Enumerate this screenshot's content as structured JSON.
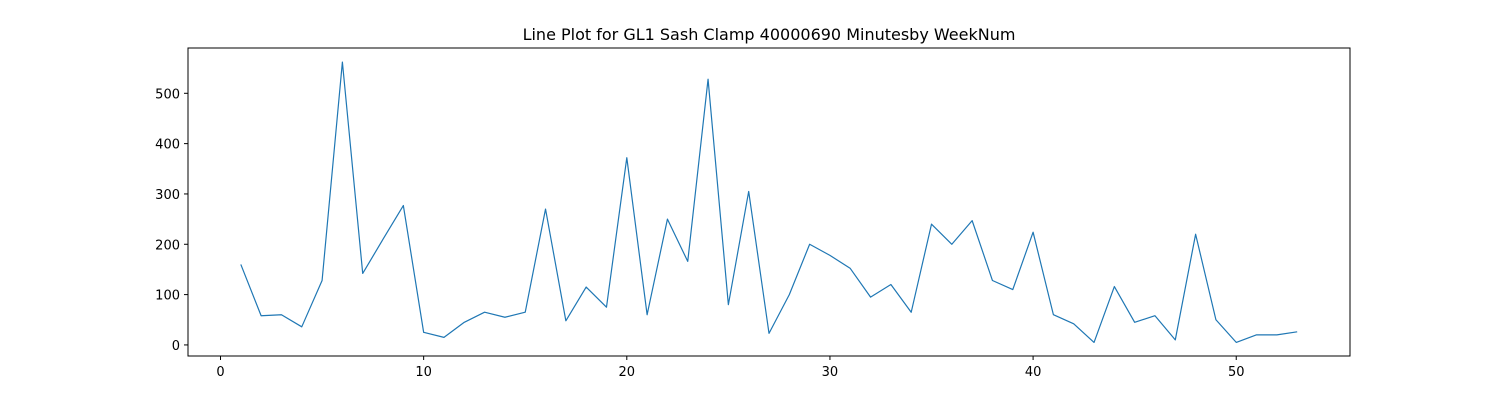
{
  "chart_data": {
    "type": "line",
    "title": "Line Plot for GL1 Sash Clamp 40000690 Minutesby WeekNum",
    "xlabel": "",
    "ylabel": "",
    "xlim": [
      -1.6,
      55.6
    ],
    "ylim": [
      -22,
      590
    ],
    "xticks": [
      0,
      10,
      20,
      30,
      40,
      50
    ],
    "yticks": [
      0,
      100,
      200,
      300,
      400,
      500
    ],
    "grid": false,
    "line_color": "#1f77b4",
    "series": [
      {
        "x": [
          1,
          2,
          3,
          4,
          5,
          6,
          7,
          8,
          9,
          10,
          11,
          12,
          13,
          14,
          15,
          16,
          17,
          18,
          19,
          20,
          21,
          22,
          23,
          24,
          25,
          26,
          27,
          28,
          29,
          30,
          31,
          32,
          33,
          34,
          35,
          36,
          37,
          38,
          39,
          40,
          41,
          42,
          43,
          44,
          45,
          46,
          47,
          48,
          49,
          50,
          51,
          52,
          53
        ],
        "values": [
          160,
          58,
          60,
          36,
          128,
          562,
          142,
          210,
          277,
          25,
          15,
          45,
          65,
          55,
          65,
          270,
          48,
          115,
          75,
          372,
          60,
          250,
          166,
          528,
          80,
          305,
          23,
          100,
          200,
          178,
          152,
          95,
          120,
          65,
          240,
          200,
          247,
          128,
          110,
          224,
          60,
          42,
          5,
          116,
          45,
          58,
          10,
          220,
          50,
          5,
          20,
          20,
          26
        ]
      }
    ]
  }
}
